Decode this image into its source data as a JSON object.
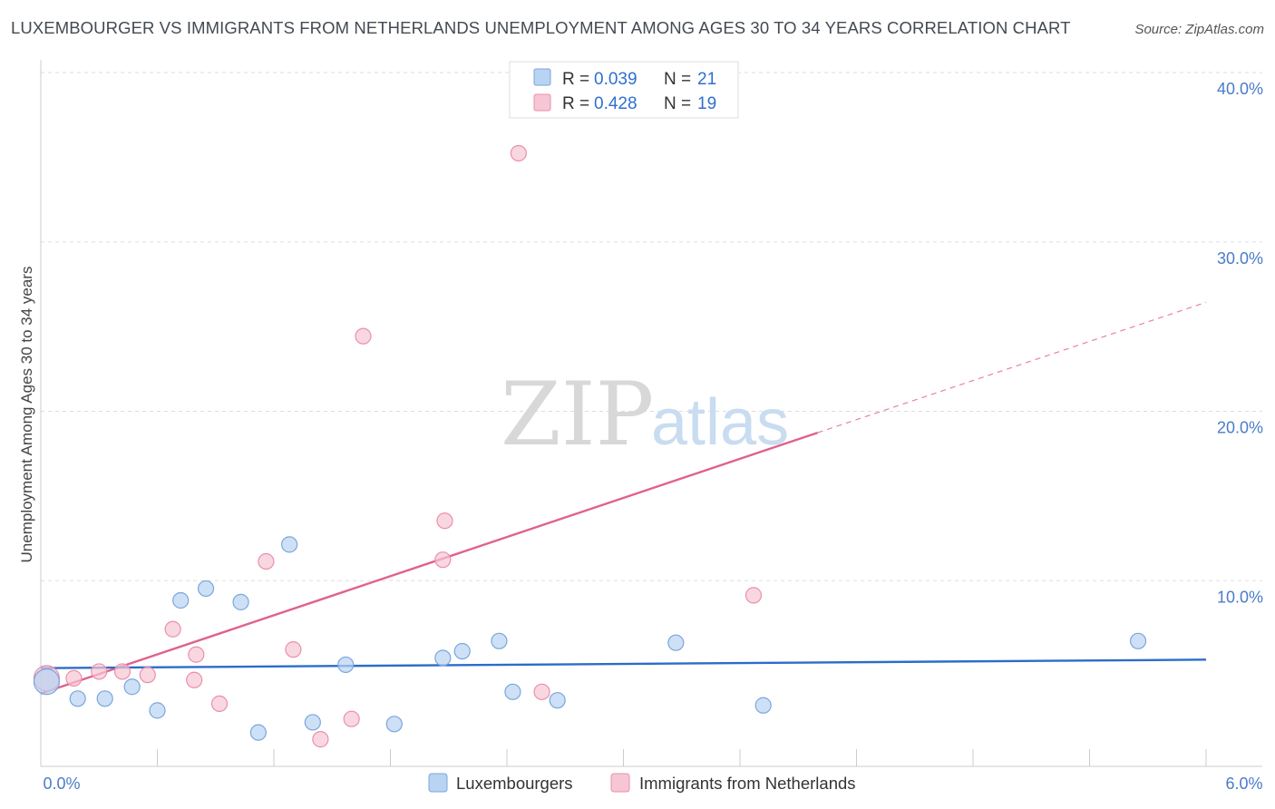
{
  "title": "LUXEMBOURGER VS IMMIGRANTS FROM NETHERLANDS UNEMPLOYMENT AMONG AGES 30 TO 34 YEARS CORRELATION CHART",
  "source": "Source: ZipAtlas.com",
  "watermark": {
    "zip": "ZIP",
    "atlas": "atlas"
  },
  "colors": {
    "blue_fill": "#b9d3f2",
    "blue_stroke": "#7aa6dd",
    "blue_line": "#2a6dc9",
    "pink_fill": "#f7c6d4",
    "pink_stroke": "#eb8fab",
    "pink_line": "#e0628b",
    "grid": "#dddddd",
    "tick_label": "#4a7cc9"
  },
  "legend": {
    "rows": [
      {
        "r_label": "R = ",
        "r_value": "0.039",
        "n_label": "N = ",
        "n_value": "21"
      },
      {
        "r_label": "R = ",
        "r_value": "0.428",
        "n_label": "N = ",
        "n_value": "19"
      }
    ]
  },
  "chart_data": {
    "type": "scatter",
    "title": "LUXEMBOURGER VS IMMIGRANTS FROM NETHERLANDS UNEMPLOYMENT AMONG AGES 30 TO 34 YEARS CORRELATION CHART",
    "xlabel": "",
    "ylabel": "Unemployment Among Ages 30 to 34 years",
    "xlim": [
      0,
      6.0
    ],
    "ylim": [
      0,
      40.0
    ],
    "x_tick_labels": [
      "0.0%",
      "6.0%"
    ],
    "y_tick_values": [
      10,
      20,
      30,
      40
    ],
    "y_tick_labels": [
      "10.0%",
      "20.0%",
      "30.0%",
      "40.0%"
    ],
    "grid": true,
    "series": [
      {
        "name": "Luxembourgers",
        "r": 0.039,
        "n": 21,
        "points": [
          [
            0.03,
            5.0
          ],
          [
            0.19,
            4.0
          ],
          [
            0.33,
            4.0
          ],
          [
            0.47,
            4.7
          ],
          [
            0.6,
            3.3
          ],
          [
            0.72,
            9.8
          ],
          [
            0.85,
            10.5
          ],
          [
            1.03,
            9.7
          ],
          [
            1.12,
            2.0
          ],
          [
            1.28,
            13.1
          ],
          [
            1.4,
            2.6
          ],
          [
            1.57,
            6.0
          ],
          [
            1.82,
            2.5
          ],
          [
            2.07,
            6.4
          ],
          [
            2.17,
            6.8
          ],
          [
            2.36,
            7.4
          ],
          [
            2.43,
            4.4
          ],
          [
            2.66,
            3.9
          ],
          [
            3.27,
            7.3
          ],
          [
            3.72,
            3.6
          ],
          [
            5.65,
            7.4
          ]
        ],
        "trend": {
          "x": [
            0.0,
            6.0
          ],
          "y": [
            5.8,
            6.3
          ]
        }
      },
      {
        "name": "Immigrants from Netherlands",
        "r": 0.428,
        "n": 19,
        "points": [
          [
            0.03,
            5.2
          ],
          [
            0.17,
            5.2
          ],
          [
            0.3,
            5.6
          ],
          [
            0.42,
            5.6
          ],
          [
            0.55,
            5.4
          ],
          [
            0.68,
            8.1
          ],
          [
            0.79,
            5.1
          ],
          [
            0.8,
            6.6
          ],
          [
            0.92,
            3.7
          ],
          [
            1.16,
            12.1
          ],
          [
            1.3,
            6.9
          ],
          [
            1.44,
            1.6
          ],
          [
            1.6,
            2.8
          ],
          [
            1.66,
            25.4
          ],
          [
            2.07,
            12.2
          ],
          [
            2.08,
            14.5
          ],
          [
            2.46,
            36.2
          ],
          [
            2.58,
            4.4
          ],
          [
            3.67,
            10.1
          ]
        ],
        "trend": {
          "x": [
            0.0,
            4.0
          ],
          "y": [
            4.3,
            19.7
          ]
        },
        "trend_extended": {
          "x": [
            4.0,
            6.0
          ],
          "y": [
            19.7,
            27.4
          ]
        }
      }
    ]
  },
  "bottom_legend": [
    {
      "label": "Luxembourgers"
    },
    {
      "label": "Immigrants from Netherlands"
    }
  ]
}
